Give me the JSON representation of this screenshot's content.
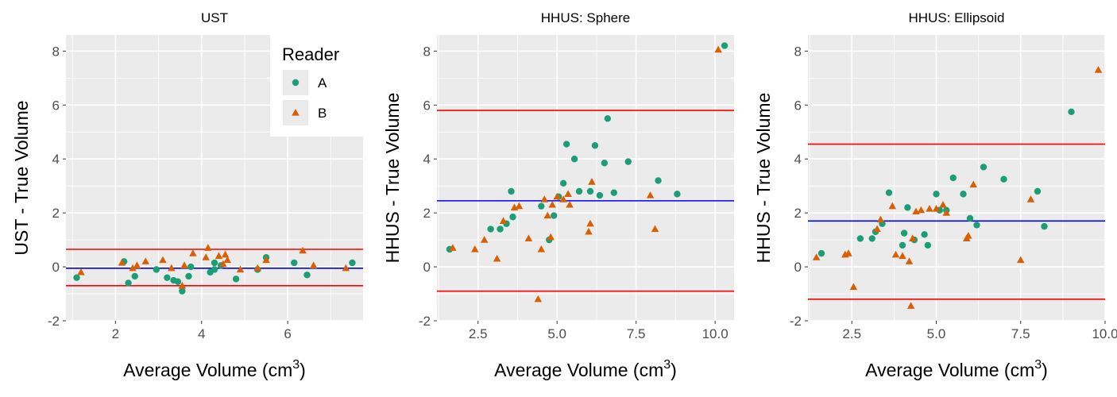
{
  "colors": {
    "A": "#1b9e77",
    "B": "#d95f02",
    "limits": "#ff0000",
    "mean": "#0000ff",
    "panel_bg": "#ebebeb",
    "grid": "#ffffff"
  },
  "legend": {
    "title": "Reader",
    "entries": [
      {
        "key": "A",
        "label": "A",
        "shape": "circle"
      },
      {
        "key": "B",
        "label": "B",
        "shape": "triangle"
      }
    ],
    "placement": "top-right of first panel"
  },
  "chart_data": [
    {
      "type": "scatter",
      "title": "UST",
      "xlabel": "Average Volume (cm³)",
      "ylabel": "UST - True Volume",
      "xlim": [
        0.85,
        7.75
      ],
      "ylim": [
        -2,
        8.6
      ],
      "xticks": [
        2,
        4,
        6
      ],
      "xtick_labels": [
        "2",
        "4",
        "6"
      ],
      "yticks": [
        -2,
        0,
        2,
        4,
        6,
        8
      ],
      "ytick_labels": [
        "-2",
        "0",
        "2",
        "4",
        "6",
        "8"
      ],
      "hlines": {
        "mean": -0.05,
        "upper": 0.65,
        "lower": -0.7
      },
      "series": [
        {
          "name": "A",
          "points": [
            [
              1.1,
              -0.4
            ],
            [
              2.2,
              0.2
            ],
            [
              2.3,
              -0.6
            ],
            [
              2.45,
              -0.35
            ],
            [
              2.95,
              -0.1
            ],
            [
              3.2,
              -0.4
            ],
            [
              3.35,
              -0.5
            ],
            [
              3.45,
              -0.55
            ],
            [
              3.55,
              -0.9
            ],
            [
              3.7,
              -0.35
            ],
            [
              3.75,
              0.0
            ],
            [
              4.2,
              -0.2
            ],
            [
              4.3,
              -0.1
            ],
            [
              4.3,
              0.15
            ],
            [
              4.45,
              0.05
            ],
            [
              4.8,
              -0.45
            ],
            [
              5.3,
              -0.1
            ],
            [
              5.5,
              0.35
            ],
            [
              6.15,
              0.15
            ],
            [
              6.45,
              -0.3
            ],
            [
              7.5,
              0.15
            ]
          ]
        },
        {
          "name": "B",
          "points": [
            [
              1.2,
              -0.2
            ],
            [
              2.15,
              0.15
            ],
            [
              2.4,
              -0.05
            ],
            [
              2.5,
              0.05
            ],
            [
              2.7,
              0.2
            ],
            [
              3.1,
              0.25
            ],
            [
              3.3,
              -0.05
            ],
            [
              3.55,
              -0.7
            ],
            [
              3.6,
              0.05
            ],
            [
              3.8,
              0.5
            ],
            [
              4.1,
              0.35
            ],
            [
              4.15,
              0.7
            ],
            [
              4.4,
              0.4
            ],
            [
              4.5,
              0.1
            ],
            [
              4.55,
              0.45
            ],
            [
              4.6,
              0.25
            ],
            [
              4.9,
              -0.1
            ],
            [
              5.3,
              -0.05
            ],
            [
              5.5,
              0.25
            ],
            [
              6.35,
              0.6
            ],
            [
              6.6,
              0.05
            ],
            [
              7.35,
              -0.05
            ]
          ]
        }
      ]
    },
    {
      "type": "scatter",
      "title": "HHUS: Sphere",
      "xlabel": "Average Volume (cm³)",
      "ylabel": "HHUS - True Volume",
      "xlim": [
        1.2,
        10.6
      ],
      "ylim": [
        -2,
        8.6
      ],
      "xticks": [
        2.5,
        5.0,
        7.5,
        10.0
      ],
      "xtick_labels": [
        "2.5",
        "5.0",
        "7.5",
        "10.0"
      ],
      "yticks": [
        -2,
        0,
        2,
        4,
        6,
        8
      ],
      "ytick_labels": [
        "-2",
        "0",
        "2",
        "4",
        "6",
        "8"
      ],
      "hlines": {
        "mean": 2.45,
        "upper": 5.8,
        "lower": -0.9
      },
      "series": [
        {
          "name": "A",
          "points": [
            [
              1.6,
              0.65
            ],
            [
              2.9,
              1.4
            ],
            [
              3.2,
              1.4
            ],
            [
              3.4,
              1.6
            ],
            [
              3.55,
              2.8
            ],
            [
              3.6,
              1.85
            ],
            [
              4.5,
              2.25
            ],
            [
              4.75,
              1.0
            ],
            [
              4.9,
              1.9
            ],
            [
              5.05,
              2.6
            ],
            [
              5.2,
              3.1
            ],
            [
              5.3,
              4.55
            ],
            [
              5.55,
              4.0
            ],
            [
              5.7,
              2.8
            ],
            [
              6.05,
              2.8
            ],
            [
              6.2,
              4.5
            ],
            [
              6.35,
              2.65
            ],
            [
              6.5,
              3.85
            ],
            [
              6.6,
              5.5
            ],
            [
              6.8,
              2.75
            ],
            [
              7.25,
              3.9
            ],
            [
              8.2,
              3.2
            ],
            [
              8.8,
              2.7
            ],
            [
              10.3,
              8.2
            ]
          ]
        },
        {
          "name": "B",
          "points": [
            [
              1.7,
              0.7
            ],
            [
              2.4,
              0.65
            ],
            [
              2.7,
              1.0
            ],
            [
              3.1,
              0.3
            ],
            [
              3.3,
              1.7
            ],
            [
              3.65,
              2.2
            ],
            [
              3.8,
              2.25
            ],
            [
              4.1,
              1.05
            ],
            [
              4.4,
              -1.2
            ],
            [
              4.5,
              0.65
            ],
            [
              4.6,
              2.5
            ],
            [
              4.7,
              1.9
            ],
            [
              4.8,
              1.1
            ],
            [
              4.85,
              2.3
            ],
            [
              5.0,
              2.6
            ],
            [
              5.2,
              2.5
            ],
            [
              5.35,
              2.7
            ],
            [
              5.4,
              2.3
            ],
            [
              6.0,
              1.3
            ],
            [
              6.05,
              1.6
            ],
            [
              6.1,
              3.15
            ],
            [
              7.95,
              2.65
            ],
            [
              8.1,
              1.4
            ],
            [
              10.1,
              8.05
            ]
          ]
        }
      ]
    },
    {
      "type": "scatter",
      "title": "HHUS: Ellipsoid",
      "xlabel": "Average Volume (cm³)",
      "ylabel": "HHUS - True Volume",
      "xlim": [
        1.2,
        10.0
      ],
      "ylim": [
        -2,
        8.6
      ],
      "xticks": [
        2.5,
        5.0,
        7.5,
        10.0
      ],
      "xtick_labels": [
        "2.5",
        "5.0",
        "7.5",
        "10.0"
      ],
      "yticks": [
        -2,
        0,
        2,
        4,
        6,
        8
      ],
      "ytick_labels": [
        "-2",
        "0",
        "2",
        "4",
        "6",
        "8"
      ],
      "hlines": {
        "mean": 1.7,
        "upper": 4.55,
        "lower": -1.2
      },
      "series": [
        {
          "name": "A",
          "points": [
            [
              1.6,
              0.5
            ],
            [
              2.75,
              1.05
            ],
            [
              3.1,
              1.05
            ],
            [
              3.2,
              1.3
            ],
            [
              3.4,
              1.6
            ],
            [
              3.6,
              2.75
            ],
            [
              4.0,
              0.8
            ],
            [
              4.05,
              1.25
            ],
            [
              4.15,
              2.2
            ],
            [
              4.35,
              1.0
            ],
            [
              4.65,
              1.2
            ],
            [
              4.75,
              0.8
            ],
            [
              5.0,
              2.7
            ],
            [
              5.1,
              2.1
            ],
            [
              5.3,
              2.1
            ],
            [
              5.5,
              3.3
            ],
            [
              5.8,
              2.7
            ],
            [
              6.0,
              1.8
            ],
            [
              6.2,
              1.55
            ],
            [
              6.4,
              3.7
            ],
            [
              7.0,
              3.25
            ],
            [
              8.0,
              2.8
            ],
            [
              8.2,
              1.5
            ],
            [
              9.0,
              5.75
            ]
          ]
        },
        {
          "name": "B",
          "points": [
            [
              1.45,
              0.35
            ],
            [
              2.3,
              0.45
            ],
            [
              2.4,
              0.5
            ],
            [
              2.55,
              -0.75
            ],
            [
              3.25,
              1.4
            ],
            [
              3.35,
              1.75
            ],
            [
              3.7,
              2.25
            ],
            [
              3.8,
              0.45
            ],
            [
              4.0,
              0.4
            ],
            [
              4.2,
              0.2
            ],
            [
              4.25,
              -1.45
            ],
            [
              4.3,
              1.05
            ],
            [
              4.4,
              2.05
            ],
            [
              4.55,
              2.1
            ],
            [
              4.8,
              2.15
            ],
            [
              5.0,
              2.15
            ],
            [
              5.2,
              2.3
            ],
            [
              5.3,
              2.0
            ],
            [
              5.9,
              1.05
            ],
            [
              5.95,
              1.15
            ],
            [
              6.1,
              3.05
            ],
            [
              7.5,
              0.25
            ],
            [
              7.8,
              2.5
            ],
            [
              9.8,
              7.3
            ]
          ]
        }
      ]
    }
  ]
}
